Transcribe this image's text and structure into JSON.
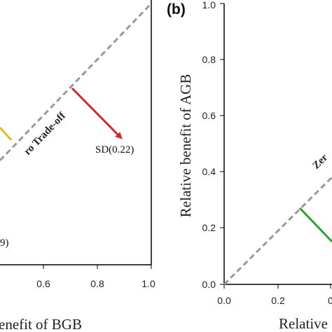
{
  "chart_data": [
    {
      "type": "line",
      "panel": "a",
      "xlabel": "Relative benefit of BGB",
      "xlabel_visible": "enefit of BGB",
      "ylabel": "",
      "xlim": [
        0,
        1
      ],
      "ylim": [
        0,
        1
      ],
      "x_ticks": [
        "0.6",
        "0.8",
        "1.0"
      ],
      "diagonal_label": "ro Trade-off",
      "series": [
        {
          "color": "#e8b923",
          "from": [
            0.0,
            0.57
          ],
          "to": [
            0.05,
            0.52
          ]
        },
        {
          "color": "#d62728",
          "from": [
            0.71,
            0.71
          ],
          "to": [
            0.89,
            0.53
          ],
          "label": "SD(0.22)"
        }
      ],
      "annotations": [
        {
          "text": "9)",
          "x": 0.0,
          "y": 0.07
        }
      ]
    },
    {
      "type": "line",
      "panel": "b",
      "panel_label": "(b)",
      "xlabel": "Relative",
      "ylabel": "Relative benefit of AGB",
      "xlim": [
        0,
        1
      ],
      "ylim": [
        0,
        1
      ],
      "x_ticks": [
        "0.0",
        "0.2",
        "0"
      ],
      "y_ticks": [
        "0.0",
        "0.2",
        "0.4",
        "0.6",
        "0.8",
        "1.0"
      ],
      "diagonal_label": "Zer",
      "series": [
        {
          "color": "#2ca02c",
          "from": [
            0.28,
            0.28
          ],
          "to": [
            0.4,
            0.16
          ]
        }
      ]
    }
  ]
}
